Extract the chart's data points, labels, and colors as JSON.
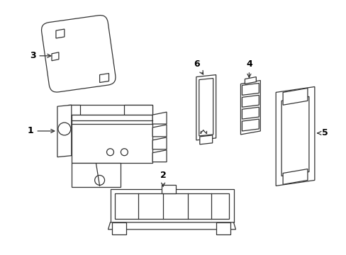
{
  "background_color": "#ffffff",
  "line_color": "#333333",
  "label_color": "#000000",
  "figsize": [
    4.89,
    3.6
  ],
  "dpi": 100
}
